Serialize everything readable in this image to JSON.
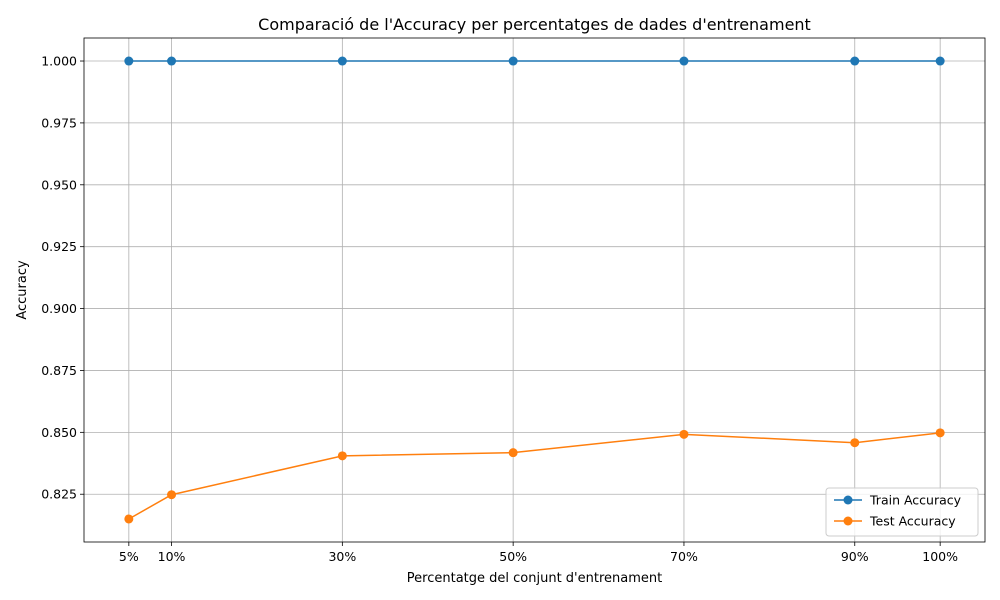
{
  "chart_data": {
    "type": "line",
    "title": "Comparació de l'Accuracy per percentatges de dades d'entrenament",
    "xlabel": "Percentatge del conjunt d'entrenament",
    "ylabel": "Accuracy",
    "x": [
      5,
      10,
      30,
      50,
      70,
      90,
      100
    ],
    "x_tick_labels": [
      "5%",
      "10%",
      "30%",
      "50%",
      "70%",
      "90%",
      "100%"
    ],
    "xlim": [
      -0.25,
      105.25
    ],
    "ylim": [
      0.8057,
      1.0093
    ],
    "y_ticks": [
      0.825,
      0.85,
      0.875,
      0.9,
      0.925,
      0.95,
      0.975,
      1.0
    ],
    "y_tick_labels": [
      "0.825",
      "0.850",
      "0.875",
      "0.900",
      "0.925",
      "0.950",
      "0.975",
      "1.000"
    ],
    "grid": true,
    "legend_position": "lower-right",
    "series": [
      {
        "name": "Train Accuracy",
        "color": "#1f77b4",
        "marker": "circle",
        "values": [
          1.0,
          1.0,
          1.0,
          1.0,
          1.0,
          1.0,
          1.0
        ]
      },
      {
        "name": "Test Accuracy",
        "color": "#ff7f0e",
        "marker": "circle",
        "values": [
          0.815,
          0.8248,
          0.8405,
          0.8418,
          0.8492,
          0.8458,
          0.8498
        ]
      }
    ]
  }
}
